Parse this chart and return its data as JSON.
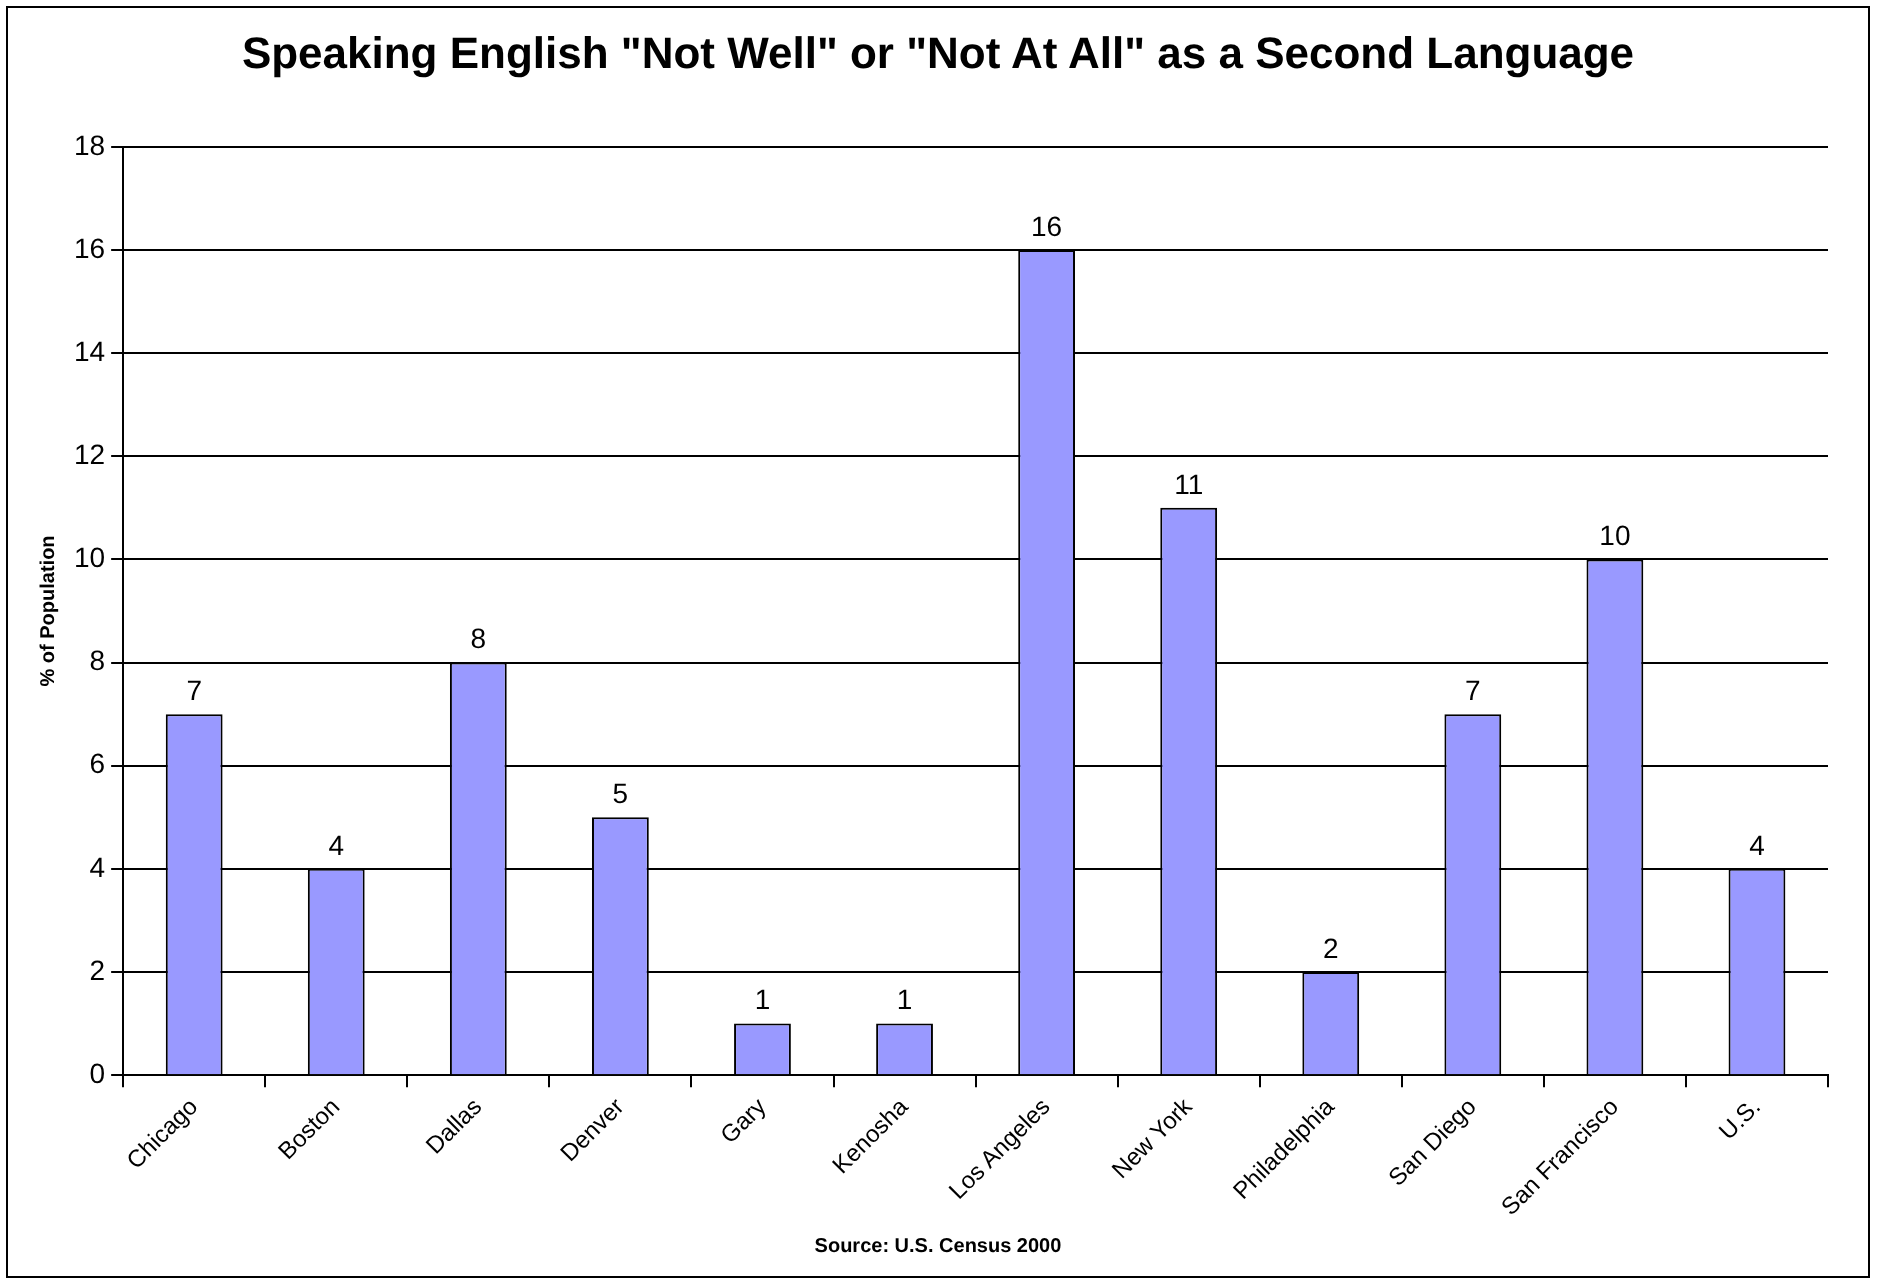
{
  "chart_data": {
    "type": "bar",
    "title": "Speaking English \"Not Well\" or \"Not At All\" as a Second Language",
    "ylabel": "% of Population",
    "categories": [
      "Chicago",
      "Boston",
      "Dallas",
      "Denver",
      "Gary",
      "Kenosha",
      "Los Angeles",
      "New York",
      "Philadelphia",
      "San Diego",
      "San Francisco",
      "U.S."
    ],
    "values": [
      7,
      4,
      8,
      5,
      1,
      1,
      16,
      11,
      2,
      7,
      10,
      4
    ],
    "color": "#9999ff",
    "ylim": [
      0,
      18
    ],
    "yticks": [
      0,
      2,
      4,
      6,
      8,
      10,
      12,
      14,
      16,
      18
    ],
    "grid": "y",
    "legend": false,
    "data_labels": true,
    "annotations": [
      "Source: U.S. Census 2000"
    ]
  }
}
